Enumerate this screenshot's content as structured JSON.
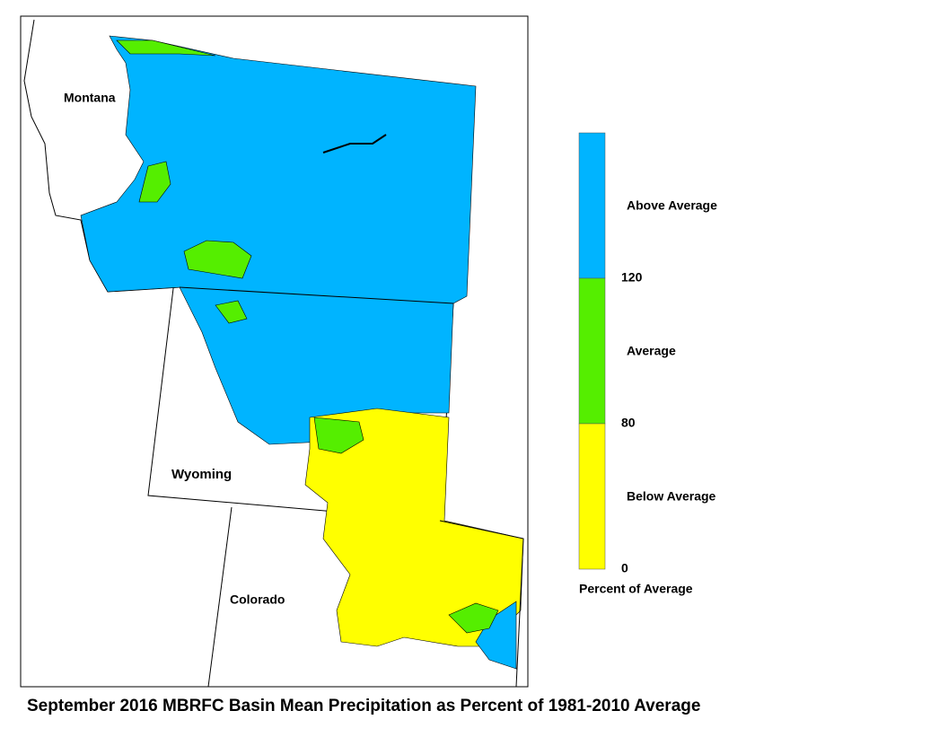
{
  "title": "September 2016 MBRFC Basin Mean Precipitation as Percent of 1981-2010 Average",
  "map": {
    "labels": [
      "Montana",
      "Wyoming",
      "Colorado"
    ]
  },
  "legend": {
    "bands": [
      {
        "label": "Above Average",
        "color": "#00b4ff"
      },
      {
        "label": "Average",
        "color": "#55ee00"
      },
      {
        "label": "Below Average",
        "color": "#ffff00"
      }
    ],
    "ticks": [
      120,
      80,
      0
    ],
    "caption": "Percent of Average"
  }
}
